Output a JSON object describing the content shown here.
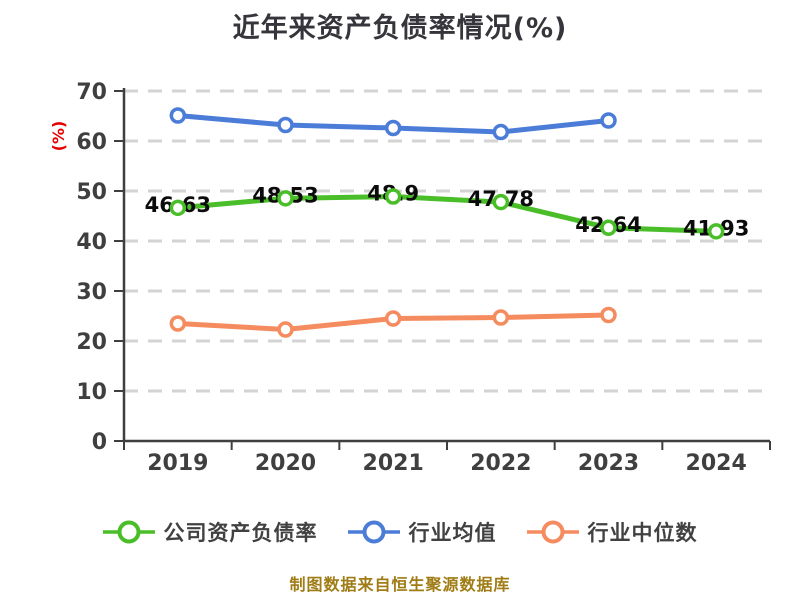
{
  "title": "近年来资产负债率情况(%)",
  "source_note": "制图数据来自恒生聚源数据库",
  "chart_data": {
    "type": "line",
    "title": "近年来资产负债率情况(%)",
    "xlabel": "",
    "ylabel": "(%)",
    "categories": [
      "2019",
      "2020",
      "2021",
      "2022",
      "2023",
      "2024"
    ],
    "y_ticks": [
      0,
      10,
      20,
      30,
      40,
      50,
      60,
      70
    ],
    "ylim": [
      0,
      70
    ],
    "grid": "horizontal-dashed",
    "legend_position": "bottom",
    "marker": "circle-white-fill",
    "series": [
      {
        "name": "公司资产负债率",
        "color": "#4abe28",
        "values": [
          46.63,
          48.53,
          48.9,
          47.78,
          42.64,
          41.93
        ],
        "show_point_labels": true
      },
      {
        "name": "行业均值",
        "color": "#4b7dd8",
        "values": [
          65.1,
          63.2,
          62.6,
          61.8,
          64.1,
          null
        ],
        "show_point_labels": false
      },
      {
        "name": "行业中位数",
        "color": "#f58c5f",
        "values": [
          23.5,
          22.3,
          24.5,
          24.7,
          25.2,
          null
        ],
        "show_point_labels": false
      }
    ]
  },
  "style": {
    "background": "#ffffff",
    "title_color": "#35353b",
    "axis_color": "#3f3f3f",
    "tick_label_color": "#3f3f3f",
    "grid_color": "#d6d3d3",
    "point_label_color": "#0b0b0b",
    "y_unit_label_color": "#e60000",
    "legend_text_color": "#414141",
    "source_note_color": "#a07c14"
  }
}
